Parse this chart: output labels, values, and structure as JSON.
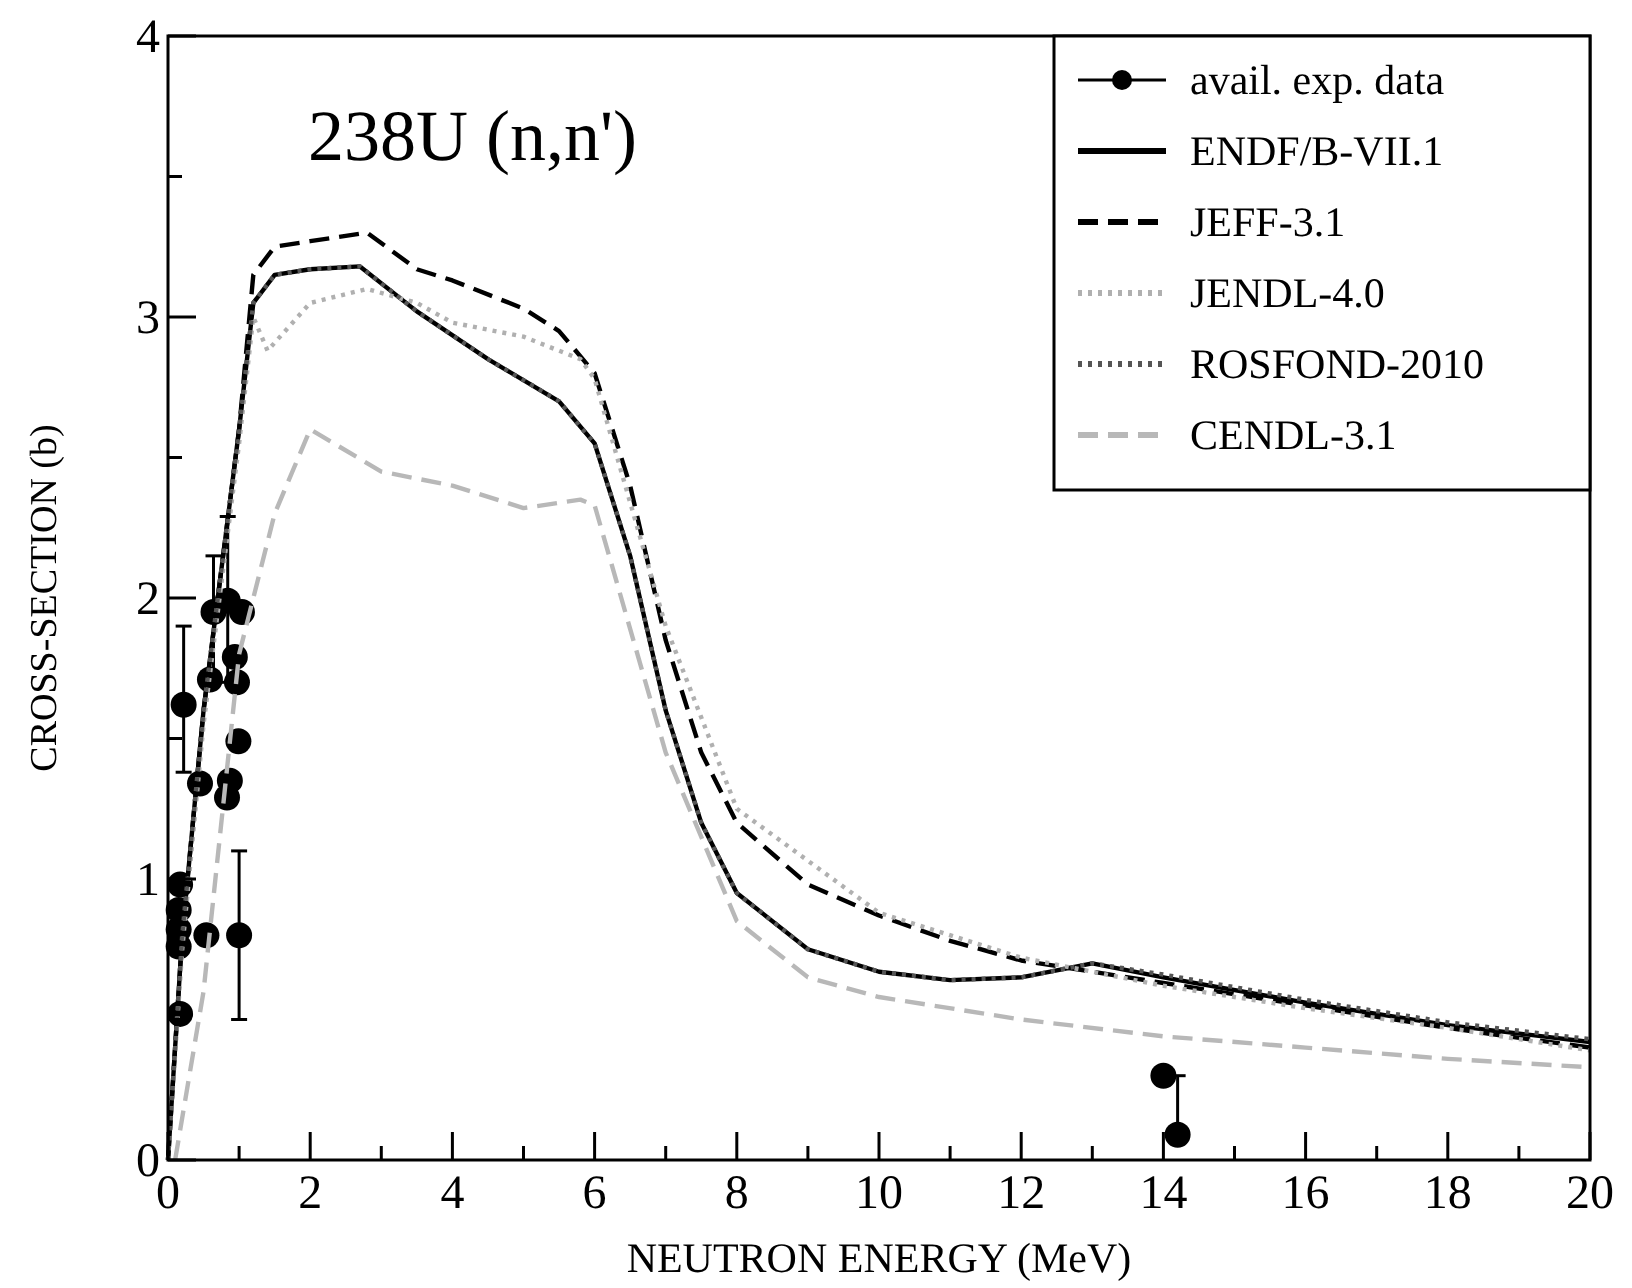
{
  "chart_data": {
    "type": "line",
    "title": "238U (n,n')",
    "xlabel": "NEUTRON ENERGY (MeV)",
    "ylabel": "CROSS-SECTION (b)",
    "xlim": [
      0,
      20
    ],
    "ylim": [
      0,
      4
    ],
    "xticks": [
      0,
      {
        "value": 1,
        "label": null
      },
      2,
      {
        "value": 3,
        "label": null
      },
      4,
      {
        "value": 5,
        "label": null
      },
      6,
      {
        "value": 7,
        "label": null
      },
      8,
      {
        "value": 9,
        "label": null
      },
      10,
      {
        "value": 11,
        "label": null
      },
      12,
      {
        "value": 13,
        "label": null
      },
      14,
      {
        "value": 15,
        "label": null
      },
      16,
      {
        "value": 17,
        "label": null
      },
      18,
      {
        "value": 19,
        "label": null
      },
      20
    ],
    "yticks": [
      0,
      {
        "value": 0.5,
        "label": null
      },
      1,
      {
        "value": 1.5,
        "label": null
      },
      2,
      {
        "value": 2.5,
        "label": null
      },
      3,
      {
        "value": 3.5,
        "label": null
      },
      4
    ],
    "grid": false,
    "legend": "top right",
    "series": [
      {
        "name": "avail. exp. data",
        "type": "scatter",
        "marker": "circle",
        "color": "#000000",
        "x": [
          0.17,
          0.22,
          0.17,
          0.15,
          0.15,
          0.15,
          0.45,
          0.54,
          0.59,
          0.64,
          0.84,
          0.83,
          0.87,
          0.94,
          0.97,
          0.99,
          1.04,
          1.0,
          14.0,
          14.2
        ],
        "values": [
          0.52,
          1.62,
          0.98,
          0.89,
          0.82,
          0.76,
          1.34,
          0.8,
          1.71,
          1.95,
          1.99,
          1.29,
          1.35,
          1.79,
          1.7,
          1.49,
          1.95,
          0.8,
          0.3,
          0.09
        ],
        "errors": [
          null,
          [
            1.38,
            1.9
          ],
          null,
          null,
          null,
          null,
          null,
          null,
          null,
          [
            1.7,
            2.15
          ],
          [
            1.7,
            2.29
          ],
          null,
          null,
          null,
          null,
          null,
          null,
          [
            0.5,
            1.1
          ],
          null,
          [
            0.09,
            0.3
          ]
        ]
      },
      {
        "name": "ENDF/B-VII.1",
        "line_style": "solid",
        "color": "#000000",
        "x": [
          0,
          0.2,
          0.5,
          0.8,
          1.0,
          1.2,
          1.5,
          2.0,
          2.7,
          3.5,
          4.5,
          5.5,
          6.0,
          6.5,
          7.0,
          7.5,
          8.0,
          9.0,
          10,
          11,
          12,
          13,
          14,
          16,
          18,
          20
        ],
        "values": [
          0,
          0.8,
          1.6,
          2.2,
          2.6,
          3.05,
          3.15,
          3.17,
          3.18,
          3.02,
          2.85,
          2.7,
          2.55,
          2.15,
          1.6,
          1.2,
          0.95,
          0.75,
          0.67,
          0.64,
          0.65,
          0.7,
          0.65,
          0.56,
          0.48,
          0.42
        ]
      },
      {
        "name": "JEFF-3.1",
        "line_style": "dashed",
        "color": "#000000",
        "x": [
          0,
          0.2,
          0.5,
          0.8,
          1.0,
          1.2,
          1.5,
          2.0,
          2.8,
          3.5,
          4.0,
          5.0,
          5.5,
          6.0,
          6.5,
          7.0,
          7.5,
          8.0,
          9.0,
          10,
          11,
          12,
          13,
          14,
          16,
          18,
          20
        ],
        "values": [
          0,
          0.8,
          1.6,
          2.2,
          2.6,
          3.15,
          3.25,
          3.27,
          3.3,
          3.17,
          3.13,
          3.03,
          2.95,
          2.8,
          2.4,
          1.85,
          1.45,
          1.2,
          0.98,
          0.87,
          0.78,
          0.71,
          0.67,
          0.63,
          0.55,
          0.47,
          0.4
        ]
      },
      {
        "name": "JENDL-4.0",
        "line_style": "dotted",
        "color": "#b0b0b0",
        "x": [
          0,
          0.2,
          0.5,
          0.8,
          1.0,
          1.2,
          1.4,
          2.0,
          2.8,
          3.5,
          4.0,
          5.0,
          5.8,
          6.0,
          7.0,
          8.0,
          10,
          12,
          14,
          16,
          18,
          20
        ],
        "values": [
          0,
          0.75,
          1.55,
          2.15,
          2.55,
          3.0,
          2.88,
          3.05,
          3.1,
          3.05,
          2.98,
          2.93,
          2.85,
          2.78,
          1.9,
          1.25,
          0.88,
          0.72,
          0.62,
          0.54,
          0.47,
          0.39
        ]
      },
      {
        "name": "ROSFOND-2010",
        "line_style": "dotted",
        "color": "#555555",
        "x": [
          0,
          0.2,
          0.5,
          0.8,
          1.0,
          1.2,
          1.5,
          2.0,
          2.7,
          3.5,
          4.5,
          5.5,
          6.0,
          6.5,
          7.0,
          7.5,
          8.0,
          9.0,
          10,
          11,
          12,
          13,
          14,
          16,
          18,
          20
        ],
        "values": [
          0,
          0.8,
          1.6,
          2.2,
          2.6,
          3.05,
          3.15,
          3.17,
          3.18,
          3.02,
          2.85,
          2.7,
          2.55,
          2.15,
          1.6,
          1.2,
          0.95,
          0.75,
          0.67,
          0.64,
          0.65,
          0.7,
          0.66,
          0.57,
          0.49,
          0.43
        ]
      },
      {
        "name": "CENDL-3.1",
        "line_style": "dashed",
        "color": "#b8b8b8",
        "x": [
          0.1,
          0.5,
          1.0,
          1.5,
          2.0,
          3.0,
          4.0,
          5.0,
          5.8,
          6.0,
          7.0,
          8.0,
          9.0,
          10,
          12,
          14,
          16,
          18,
          20
        ],
        "values": [
          0,
          0.6,
          1.8,
          2.3,
          2.6,
          2.45,
          2.4,
          2.32,
          2.35,
          2.33,
          1.45,
          0.85,
          0.65,
          0.58,
          0.5,
          0.44,
          0.4,
          0.36,
          0.33
        ]
      }
    ]
  }
}
